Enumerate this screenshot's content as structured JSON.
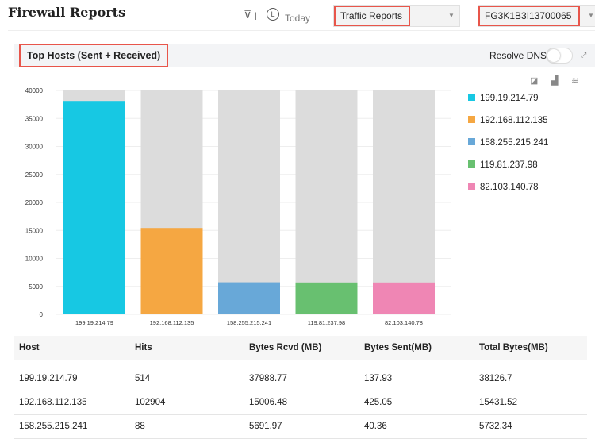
{
  "header": {
    "title": "Firewall Reports",
    "filter_icon": "filter-icon",
    "clock_icon": "clock-icon",
    "time_range": "Today",
    "report_select": "Traffic Reports",
    "device_select": "FG3K1B3I13700065"
  },
  "section": {
    "title": "Top Hosts (Sent + Received)",
    "resolve_dns_label": "Resolve DNS",
    "resolve_dns_on": false
  },
  "chart_data": {
    "type": "bar",
    "stacked": true,
    "categories": [
      "199.19.214.79",
      "192.168.112.135",
      "158.255.215.241",
      "119.81.237.98",
      "82.103.140.78"
    ],
    "values": [
      38126.7,
      15431.52,
      5732.34,
      5700,
      5700
    ],
    "colors": [
      "#17c8e3",
      "#f5a742",
      "#68a8d8",
      "#68c070",
      "#ef86b4"
    ],
    "background_color": "#dcdcdc",
    "ylim": [
      0,
      40000
    ],
    "yticks": [
      0,
      5000,
      10000,
      15000,
      20000,
      25000,
      30000,
      35000,
      40000
    ],
    "grid": true,
    "legend": "right"
  },
  "table": {
    "headers": [
      "Host",
      "Hits",
      "Bytes Rcvd (MB)",
      "Bytes Sent(MB)",
      "Total Bytes(MB)"
    ],
    "rows": [
      [
        "199.19.214.79",
        "514",
        "37988.77",
        "137.93",
        "38126.7"
      ],
      [
        "192.168.112.135",
        "102904",
        "15006.48",
        "425.05",
        "15431.52"
      ],
      [
        "158.255.215.241",
        "88",
        "5691.97",
        "40.36",
        "5732.34"
      ]
    ]
  }
}
